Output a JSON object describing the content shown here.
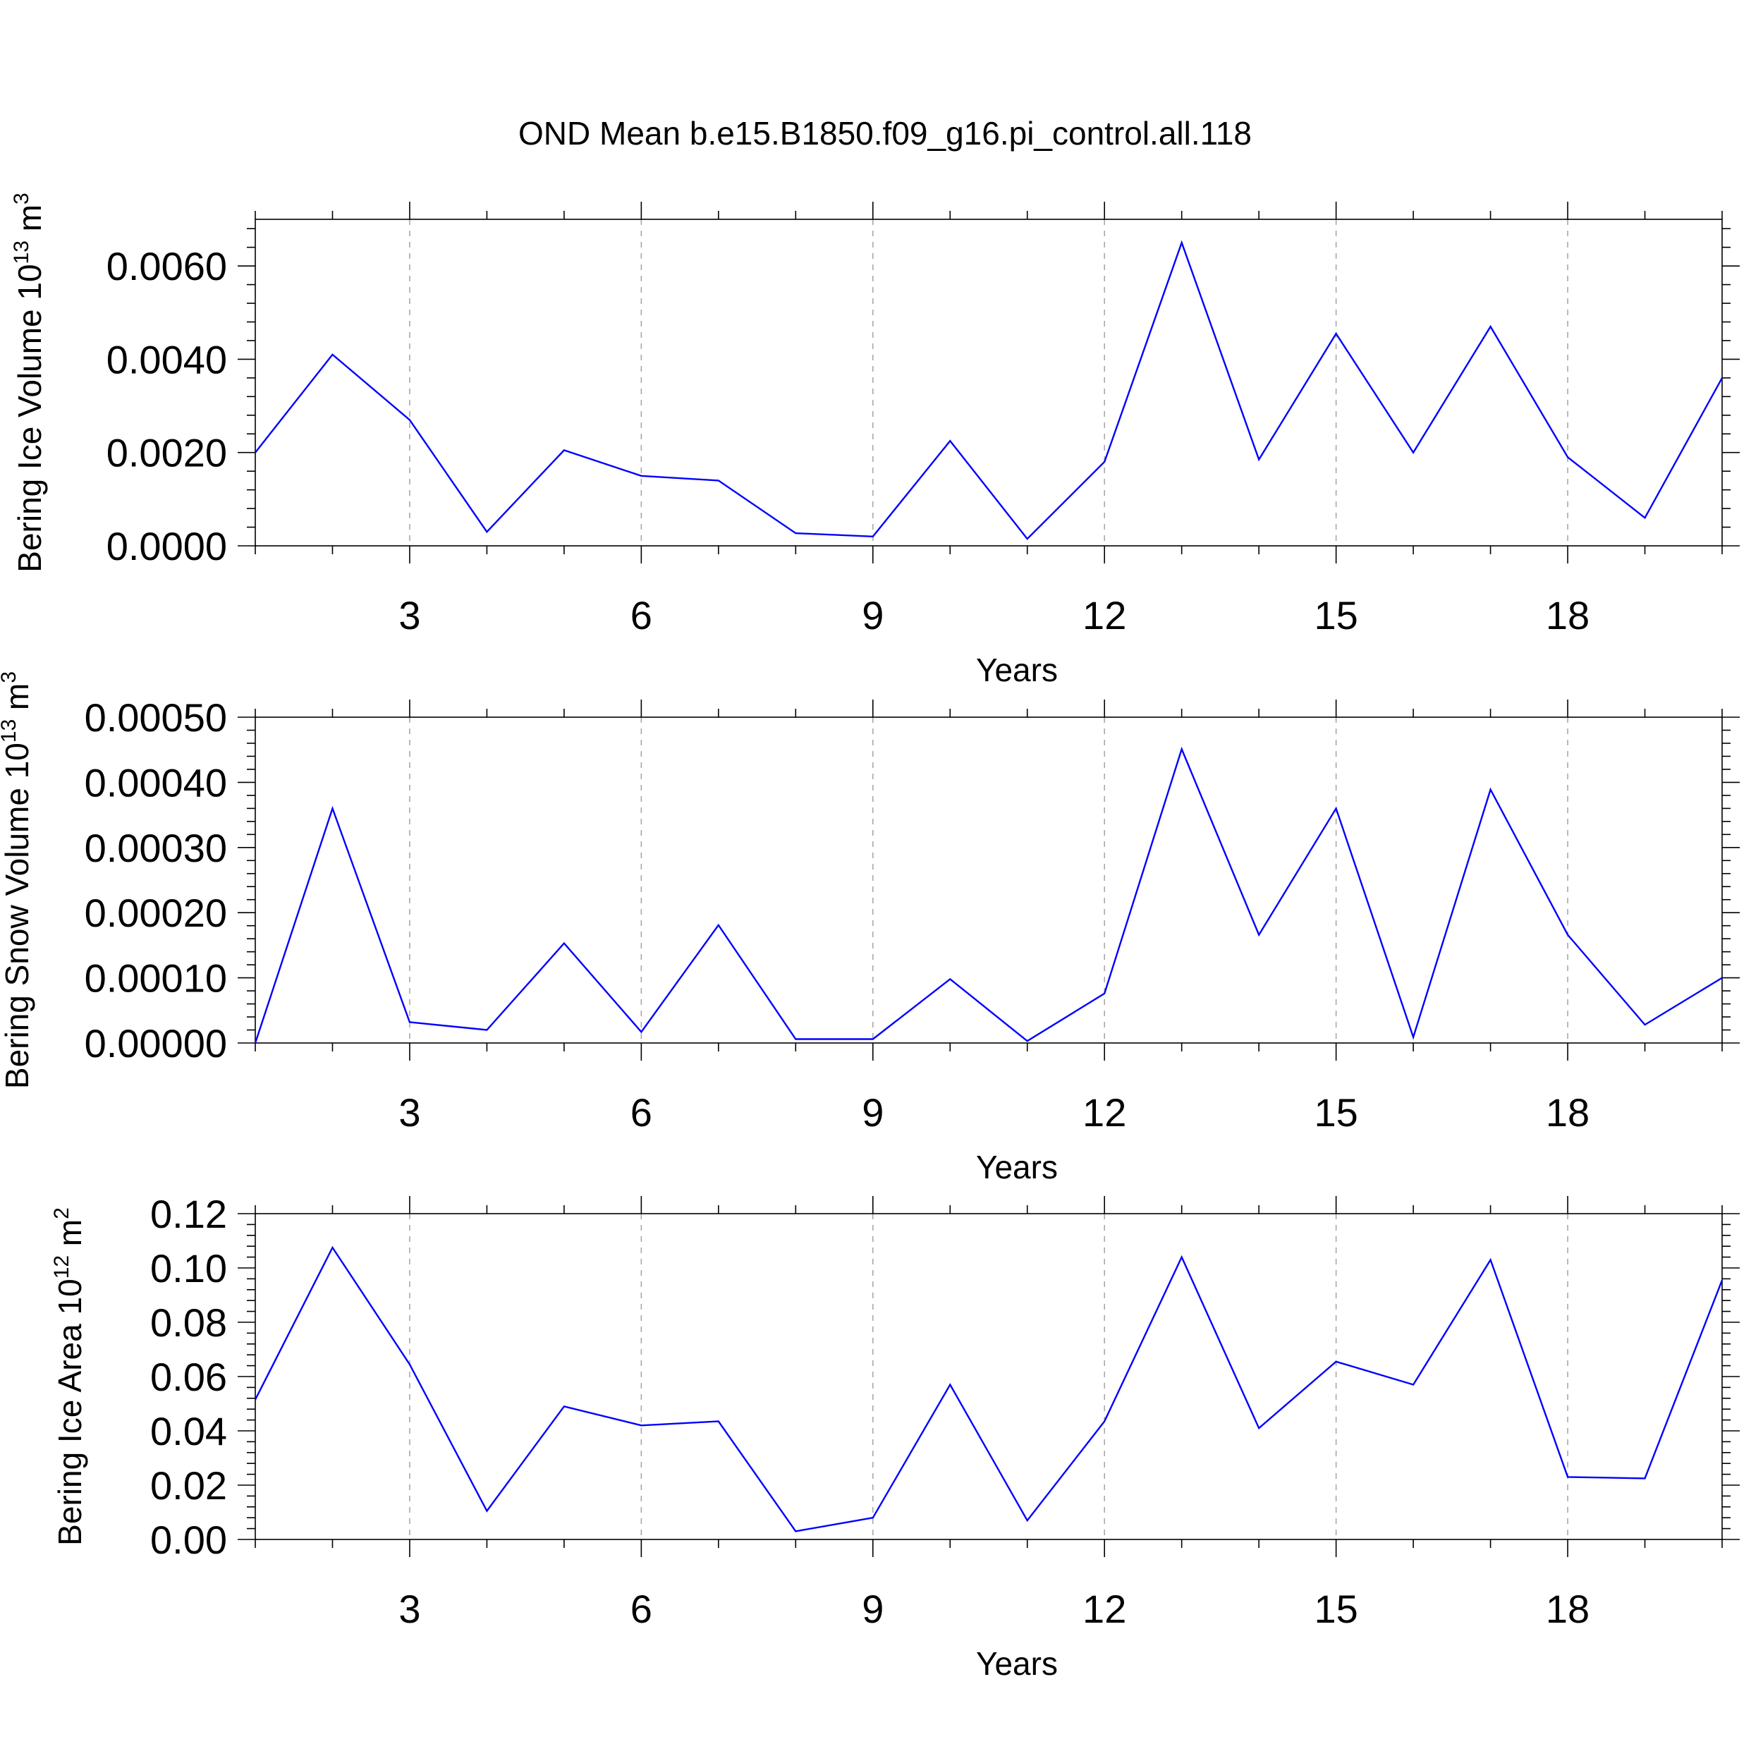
{
  "title": "OND Mean b.e15.B1850.f09_g16.pi_control.all.118",
  "colors": {
    "series": "#0000ff",
    "grid": "#a8a8a8",
    "axes": "#000000"
  },
  "chart_data": [
    {
      "type": "line",
      "title": "",
      "xlabel": "Years",
      "ylabel": "Bering Ice Volume 10",
      "ylabel_exponent": "13",
      "ylabel_unit": "m",
      "ylabel_unit_exponent": "3",
      "xlim": [
        1,
        20
      ],
      "ylim": [
        0,
        0.007
      ],
      "xticks": [
        3,
        6,
        9,
        12,
        15,
        18
      ],
      "yticks": [
        0,
        0.002,
        0.004,
        0.006
      ],
      "ytick_labels": [
        "0.0000",
        "0.0020",
        "0.0040",
        "0.0060"
      ],
      "grid": "vertical dashed at x ticks",
      "series": [
        {
          "x": [
            1,
            2,
            3,
            4,
            5,
            6,
            7,
            8,
            9,
            10,
            11,
            12,
            13,
            14,
            15,
            16,
            17,
            18,
            19,
            20
          ],
          "values": [
            0.002,
            0.0041,
            0.0027,
            0.0003,
            0.00205,
            0.0015,
            0.0014,
            0.00027,
            0.0002,
            0.00225,
            0.00015,
            0.0018,
            0.0065,
            0.00185,
            0.00455,
            0.002,
            0.0047,
            0.0019,
            0.0006,
            0.0036
          ]
        }
      ]
    },
    {
      "type": "line",
      "title": "",
      "xlabel": "Years",
      "ylabel": "Bering Snow Volume 10",
      "ylabel_exponent": "13",
      "ylabel_unit": "m",
      "ylabel_unit_exponent": "3",
      "xlim": [
        1,
        20
      ],
      "ylim": [
        0,
        0.0005
      ],
      "xticks": [
        3,
        6,
        9,
        12,
        15,
        18
      ],
      "yticks": [
        0,
        0.0001,
        0.0002,
        0.0003,
        0.0004,
        0.0005
      ],
      "ytick_labels": [
        "0.00000",
        "0.00010",
        "0.00020",
        "0.00030",
        "0.00040",
        "0.00050"
      ],
      "grid": "vertical dashed at x ticks",
      "series": [
        {
          "x": [
            1,
            2,
            3,
            4,
            5,
            6,
            7,
            8,
            9,
            10,
            11,
            12,
            13,
            14,
            15,
            16,
            17,
            18,
            19,
            20
          ],
          "values": [
            0.0,
            0.00036,
            3.2e-05,
            2e-05,
            0.000153,
            1.7e-05,
            0.000181,
            6e-06,
            6e-06,
            9.8e-05,
            3e-06,
            7.6e-05,
            0.000451,
            0.000166,
            0.00036,
            9e-06,
            0.000389,
            0.000166,
            2.8e-05,
            0.0001
          ]
        }
      ]
    },
    {
      "type": "line",
      "title": "",
      "xlabel": "Years",
      "ylabel": "Bering Ice Area 10",
      "ylabel_exponent": "12",
      "ylabel_unit": "m",
      "ylabel_unit_exponent": "2",
      "xlim": [
        1,
        20
      ],
      "ylim": [
        0,
        0.12
      ],
      "xticks": [
        3,
        6,
        9,
        12,
        15,
        18
      ],
      "yticks": [
        0,
        0.02,
        0.04,
        0.06,
        0.08,
        0.1,
        0.12
      ],
      "ytick_labels": [
        "0.00",
        "0.02",
        "0.04",
        "0.06",
        "0.08",
        "0.10",
        "0.12"
      ],
      "grid": "vertical dashed at x ticks",
      "series": [
        {
          "x": [
            1,
            2,
            3,
            4,
            5,
            6,
            7,
            8,
            9,
            10,
            11,
            12,
            13,
            14,
            15,
            16,
            17,
            18,
            19,
            20
          ],
          "values": [
            0.0515,
            0.1075,
            0.0645,
            0.0105,
            0.049,
            0.042,
            0.0435,
            0.003,
            0.008,
            0.057,
            0.007,
            0.0435,
            0.104,
            0.041,
            0.0655,
            0.057,
            0.103,
            0.023,
            0.0225,
            0.0955
          ]
        }
      ]
    }
  ]
}
